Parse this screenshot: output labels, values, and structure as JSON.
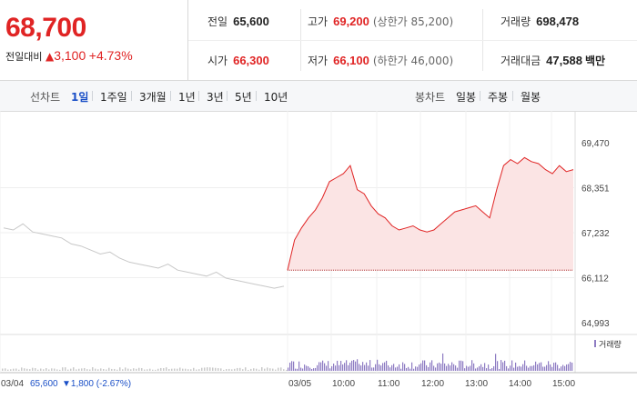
{
  "quote": {
    "price": "68,700",
    "change_label": "전일대비",
    "change_arrow": "▲",
    "change_amount": "3,100",
    "change_pct": "+4.73%",
    "prev_close_label": "전일",
    "prev_close": "65,600",
    "high_label": "고가",
    "high": "69,200",
    "upper_limit": "(상한가 85,200)",
    "volume_label": "거래량",
    "volume": "698,478",
    "open_label": "시가",
    "open": "66,300",
    "low_label": "저가",
    "low": "66,100",
    "lower_limit": "(하한가 46,000)",
    "amount_label": "거래대금",
    "amount": "47,588",
    "amount_unit": "백만"
  },
  "tabs": {
    "line_label": "선차트",
    "line_tabs": [
      "1일",
      "1주일",
      "3개월",
      "1년",
      "3년",
      "5년",
      "10년"
    ],
    "active": "1일",
    "candle_label": "봉차트",
    "candle_tabs": [
      "일봉",
      "주봉",
      "월봉"
    ]
  },
  "colors": {
    "up": "#e02424",
    "down": "#1a4fc7",
    "prev_line": "#c8c8c8",
    "volume": "#8e7cc3",
    "fill": "#fbe4e4"
  },
  "chart_data": {
    "type": "line",
    "y_ticks": [
      "69,470",
      "68,351",
      "67,232",
      "66,112",
      "64,993"
    ],
    "ylim": [
      64993,
      69470
    ],
    "x_ticks": [
      "03/04",
      "03/05",
      "10:00",
      "11:00",
      "12:00",
      "13:00",
      "14:00",
      "15:00"
    ],
    "prev_day_label": "03/04",
    "prev_day_close": "65,600",
    "prev_day_change": "▼1,800 (-2.67%)",
    "volume_legend": "거래량",
    "series": [
      {
        "values": [
          67350,
          67300,
          67450,
          67250,
          67200,
          67150,
          67100,
          66950,
          66900,
          66800,
          66700,
          66750,
          66600,
          66500,
          66450,
          66400,
          66350,
          66450,
          66300,
          66250,
          66200,
          66150,
          66250,
          66100,
          66050,
          66000,
          65950,
          65900,
          65850,
          65900
        ]
      },
      {
        "values": [
          66300,
          67050,
          67350,
          67600,
          67800,
          68100,
          68500,
          68600,
          68700,
          68900,
          68300,
          68200,
          67900,
          67700,
          67600,
          67400,
          67300,
          67350,
          67400,
          67300,
          67250,
          67300,
          67450,
          67600,
          67750,
          67800,
          67850,
          67900,
          67750,
          67600,
          68300,
          68900,
          69050,
          68950,
          69100,
          69000,
          68950,
          68800,
          68700,
          68900,
          68750,
          68800
        ]
      }
    ]
  }
}
